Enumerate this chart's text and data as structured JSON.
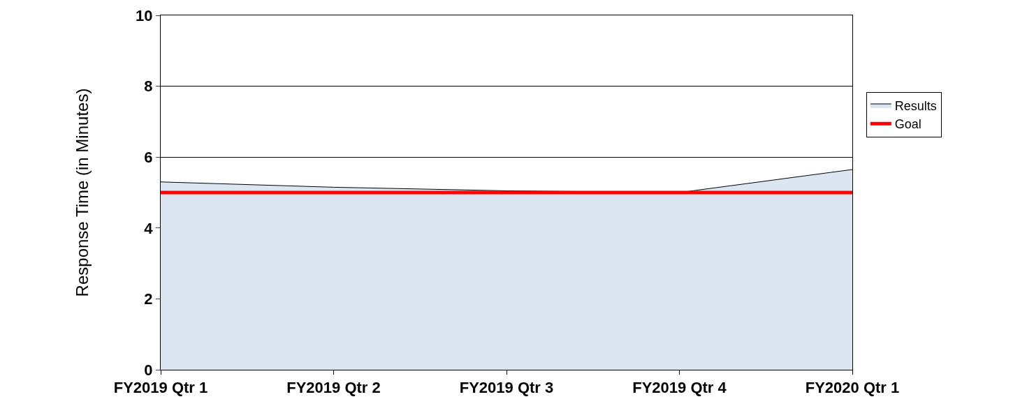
{
  "chart_data": {
    "type": "area",
    "ylabel": "Response Time (in Minutes)",
    "categories": [
      "FY2019 Qtr 1",
      "FY2019 Qtr 2",
      "FY2019 Qtr 3",
      "FY2019 Qtr 4",
      "FY2020 Qtr 1"
    ],
    "series": [
      {
        "name": "Results",
        "color": "#dce6f2",
        "values": [
          5.3,
          5.15,
          5.05,
          5.0,
          5.65
        ]
      },
      {
        "name": "Goal",
        "type": "line",
        "color": "#ff0000",
        "values": [
          5,
          5,
          5,
          5,
          5
        ]
      }
    ],
    "ylim": [
      0,
      10
    ],
    "yticks": [
      0,
      2,
      4,
      6,
      8,
      10
    ],
    "grid": "y",
    "legend": "right"
  }
}
